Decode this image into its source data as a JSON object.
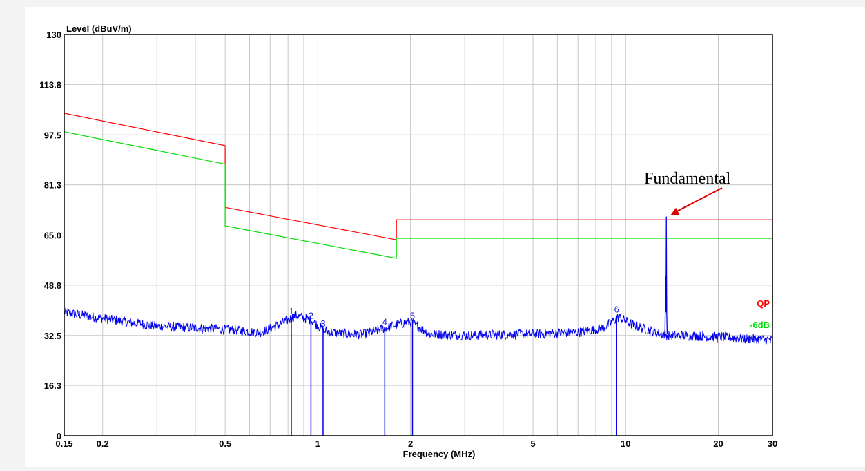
{
  "chart_data": {
    "type": "line",
    "xscale": "log",
    "xlabel": "Frequency (MHz)",
    "ylabel": "Level (dBuV/m)",
    "xlim": [
      0.15,
      30
    ],
    "ylim": [
      0,
      130
    ],
    "x_ticks": [
      0.15,
      0.2,
      0.5,
      1,
      2,
      5,
      10,
      20,
      30
    ],
    "x_tick_labels": [
      "0.15",
      "0.2",
      "0.5",
      "1",
      "2",
      "5",
      "10",
      "20",
      "30"
    ],
    "y_ticks": [
      0,
      16.3,
      32.5,
      48.8,
      65.0,
      81.3,
      97.5,
      113.8,
      130
    ],
    "y_tick_labels": [
      "0",
      "16.3",
      "32.5",
      "48.8",
      "65.0",
      "81.3",
      "97.5",
      "113.8",
      "130"
    ],
    "grid": true,
    "legend_position": "right",
    "series": [
      {
        "name": "QP",
        "color": "#ff0000",
        "points": [
          [
            0.15,
            104.5
          ],
          [
            0.5,
            94
          ],
          [
            0.5,
            74
          ],
          [
            1.8,
            63.5
          ],
          [
            1.8,
            70
          ],
          [
            30,
            70
          ],
          [
            30,
            43
          ]
        ]
      },
      {
        "name": "-6dB",
        "color": "#00dd00",
        "points": [
          [
            0.15,
            98.5
          ],
          [
            0.5,
            88
          ],
          [
            0.5,
            68
          ],
          [
            1.8,
            57.5
          ],
          [
            1.8,
            64
          ],
          [
            30,
            64
          ],
          [
            30,
            36
          ]
        ]
      },
      {
        "name": "",
        "color": "#0000ee",
        "style": "noisy-trace",
        "points": [
          [
            0.15,
            40
          ],
          [
            0.2,
            38
          ],
          [
            0.3,
            35.5
          ],
          [
            0.5,
            34.5
          ],
          [
            0.65,
            33.5
          ],
          [
            0.75,
            36
          ],
          [
            0.85,
            39
          ],
          [
            0.95,
            37.5
          ],
          [
            1.05,
            34
          ],
          [
            1.2,
            33
          ],
          [
            1.4,
            32.8
          ],
          [
            1.6,
            34.5
          ],
          [
            1.8,
            36
          ],
          [
            2,
            37
          ],
          [
            2.3,
            33
          ],
          [
            3,
            32.5
          ],
          [
            5,
            33
          ],
          [
            7,
            33.5
          ],
          [
            8.5,
            35
          ],
          [
            9.5,
            38.5
          ],
          [
            10.5,
            36
          ],
          [
            12,
            34
          ],
          [
            13,
            33
          ],
          [
            13.9,
            32.5
          ],
          [
            15,
            32.5
          ],
          [
            20,
            32
          ],
          [
            25,
            31.5
          ],
          [
            30,
            31
          ]
        ]
      }
    ],
    "markers": [
      {
        "label": "1",
        "x": 0.82,
        "y": 38.5
      },
      {
        "label": "2",
        "x": 0.95,
        "y": 37
      },
      {
        "label": "3",
        "x": 1.04,
        "y": 34.5
      },
      {
        "label": "4",
        "x": 1.65,
        "y": 35
      },
      {
        "label": "5",
        "x": 2.03,
        "y": 37
      },
      {
        "label": "6",
        "x": 9.35,
        "y": 39
      }
    ],
    "peak": {
      "x": 13.56,
      "y": 71,
      "shoulder": 52
    },
    "annotation": {
      "text": "Fundamental",
      "x": 13.56,
      "y": 71
    },
    "legend": [
      {
        "label": "QP",
        "color": "#ff0000"
      },
      {
        "label": "-6dB",
        "color": "#00dd00"
      }
    ]
  }
}
